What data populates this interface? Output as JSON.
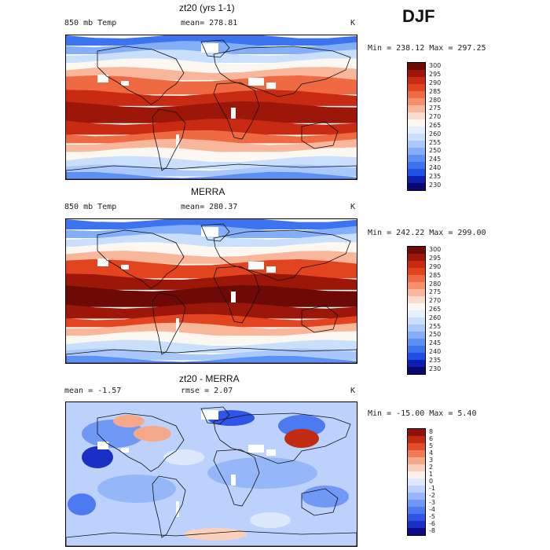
{
  "season": "DJF",
  "colors": {
    "temp": [
      "#08086e",
      "#0c1fb0",
      "#1f4fe6",
      "#3c74f0",
      "#5d90f5",
      "#84aef8",
      "#aac8fb",
      "#cadffc",
      "#e6f0fd",
      "#fdf7f1",
      "#fbdccc",
      "#f8b79b",
      "#f4916b",
      "#ef6a43",
      "#e34420",
      "#c92a12",
      "#9c160a",
      "#6e0a06"
    ],
    "diff": [
      "#0c0c8a",
      "#1a2fc4",
      "#2e55e8",
      "#4d7af0",
      "#7099f5",
      "#95b7f9",
      "#bcd2fc",
      "#dde8fd",
      "#fdf0ea",
      "#fbd0bb",
      "#f6a98a",
      "#ef7b54",
      "#e34d27",
      "#c32a12",
      "#8e1208"
    ]
  },
  "panels": [
    {
      "title": "zt20 (yrs 1-1)",
      "left_label": "850 mb Temp",
      "center_label": "mean= 278.81",
      "units": "K",
      "minmax": "Min = 238.12 Max = 297.25",
      "kind": "temp",
      "ticks": [
        "300",
        "295",
        "290",
        "285",
        "280",
        "275",
        "270",
        "265",
        "260",
        "255",
        "250",
        "245",
        "240",
        "235",
        "230"
      ]
    },
    {
      "title": "MERRA",
      "left_label": "850 mb Temp",
      "center_label": "mean= 280.37",
      "units": "K",
      "minmax": "Min = 242.22 Max = 299.00",
      "kind": "temp",
      "ticks": [
        "300",
        "295",
        "290",
        "285",
        "280",
        "275",
        "270",
        "265",
        "260",
        "255",
        "250",
        "245",
        "240",
        "235",
        "230"
      ]
    },
    {
      "title": "zt20 - MERRA",
      "left_label": "mean =   -1.57",
      "center_label": "rmse =   2.07",
      "units": "K",
      "minmax": "Min = -15.00 Max =   5.40",
      "kind": "diff",
      "ticks": [
        "8",
        "6",
        "5",
        "4",
        "3",
        "2",
        "1",
        "0",
        "-1",
        "-2",
        "-3",
        "-4",
        "-5",
        "-6",
        "-8"
      ]
    }
  ],
  "chart_data": [
    {
      "type": "heatmap",
      "title": "zt20 (yrs 1-1)",
      "variable": "850 mb Temp",
      "units": "K",
      "mean": 278.81,
      "min": 238.12,
      "max": 297.25,
      "colorbar_levels": [
        230,
        235,
        240,
        245,
        250,
        255,
        260,
        265,
        270,
        275,
        280,
        285,
        290,
        295,
        300
      ]
    },
    {
      "type": "heatmap",
      "title": "MERRA",
      "variable": "850 mb Temp",
      "units": "K",
      "mean": 280.37,
      "min": 242.22,
      "max": 299.0,
      "colorbar_levels": [
        230,
        235,
        240,
        245,
        250,
        255,
        260,
        265,
        270,
        275,
        280,
        285,
        290,
        295,
        300
      ]
    },
    {
      "type": "heatmap",
      "title": "zt20 - MERRA",
      "units": "K",
      "mean": -1.57,
      "rmse": 2.07,
      "min": -15.0,
      "max": 5.4,
      "colorbar_levels": [
        -8,
        -6,
        -5,
        -4,
        -3,
        -2,
        -1,
        0,
        1,
        2,
        3,
        4,
        5,
        6,
        8
      ]
    }
  ]
}
